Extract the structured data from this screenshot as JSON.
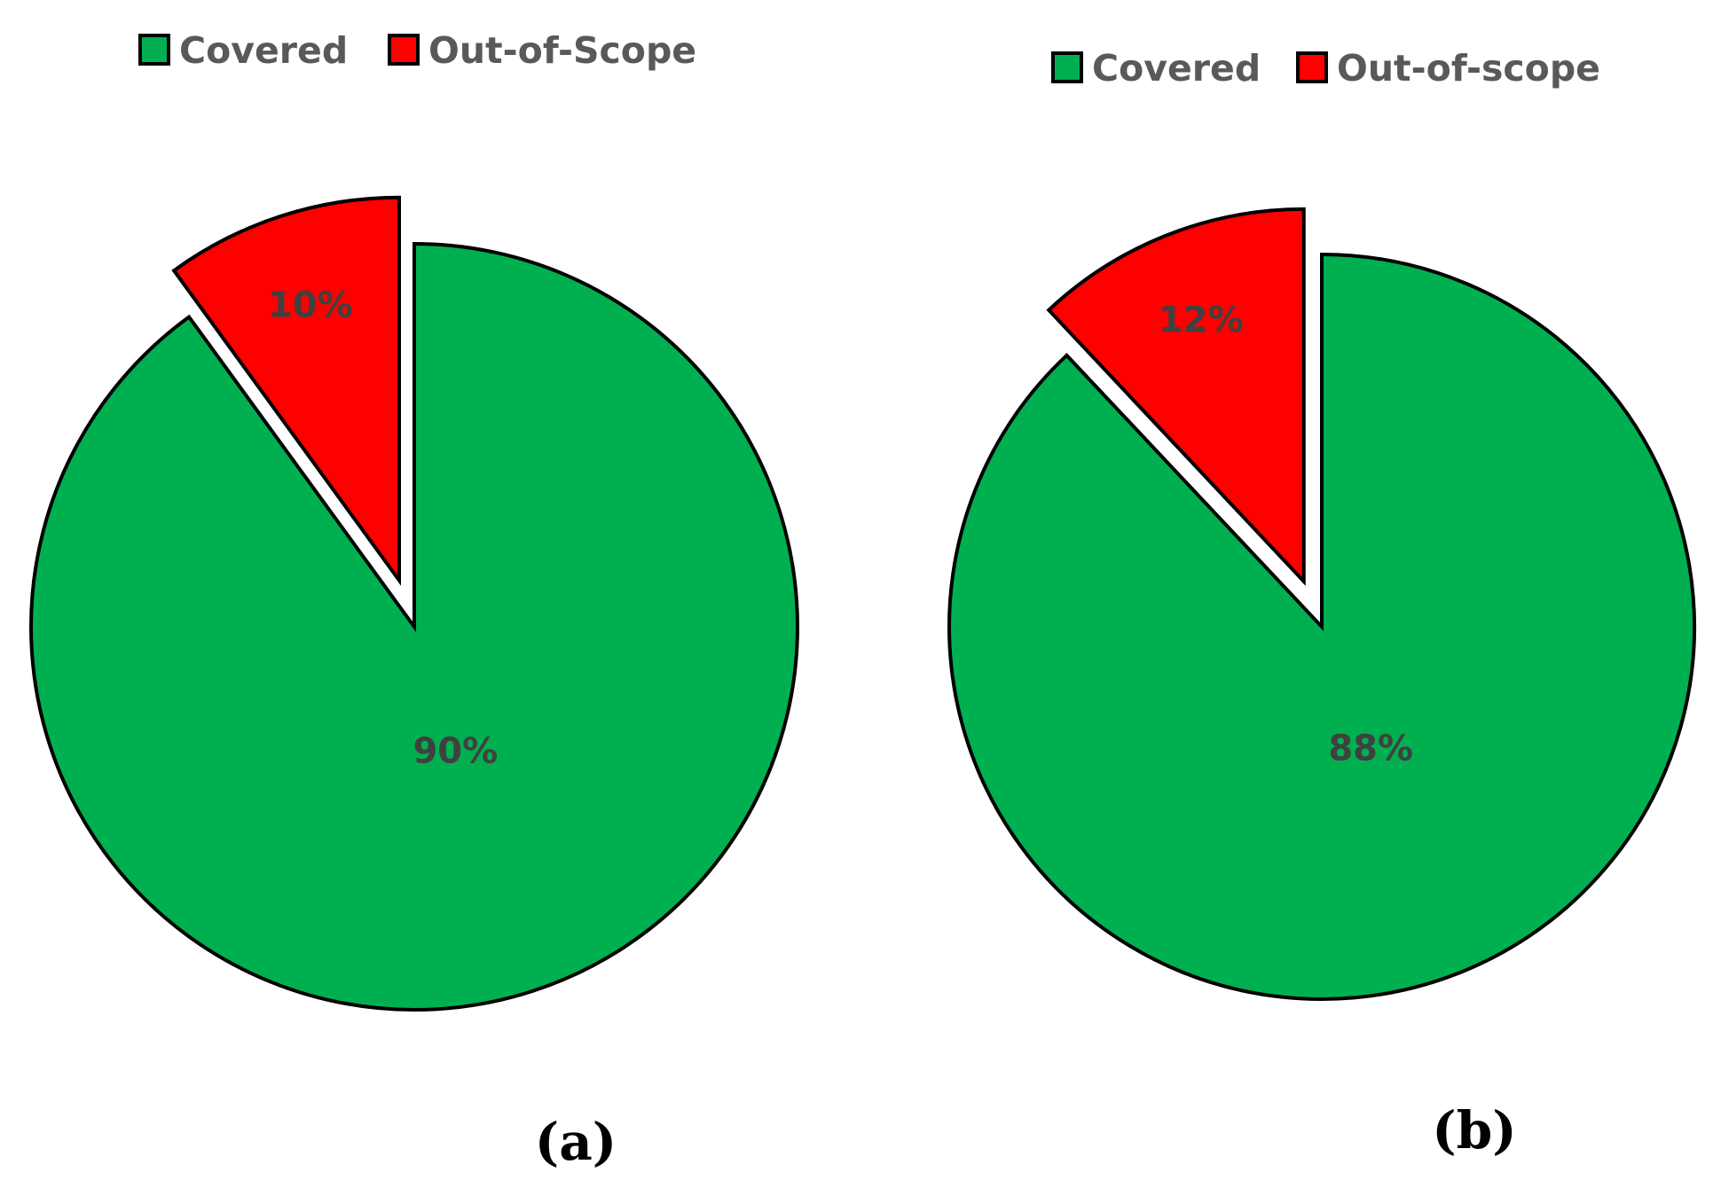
{
  "chart_data": [
    {
      "type": "pie",
      "panel_label": "(a)",
      "exploded": "Out-of-Scope",
      "legend_position": "top",
      "slices": [
        {
          "label": "Covered",
          "value": 90,
          "display": "90%",
          "color": "#00B050"
        },
        {
          "label": "Out-of-Scope",
          "value": 10,
          "display": "10%",
          "color": "#FF0000"
        }
      ]
    },
    {
      "type": "pie",
      "panel_label": "(b)",
      "exploded": "Out-of-scope",
      "legend_position": "top",
      "slices": [
        {
          "label": "Covered",
          "value": 88,
          "display": "88%",
          "color": "#00B050"
        },
        {
          "label": "Out-of-scope",
          "value": 12,
          "display": "12%",
          "color": "#FF0000"
        }
      ]
    }
  ]
}
